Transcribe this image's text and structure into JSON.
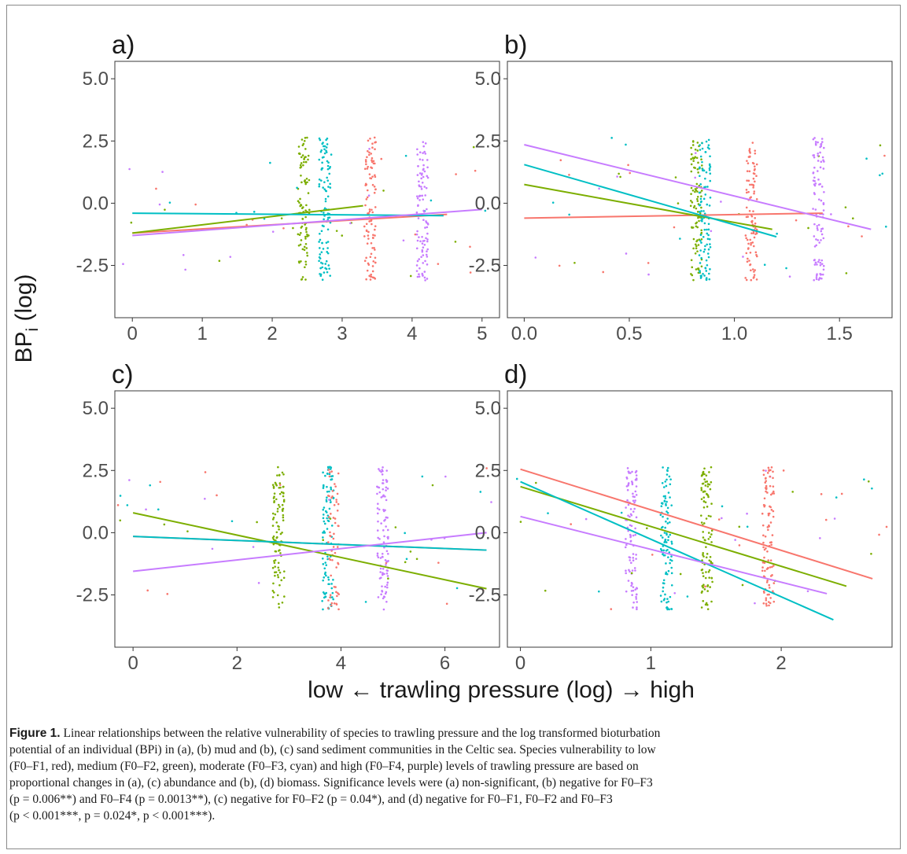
{
  "figure": {
    "ylabel_main": "BP",
    "ylabel_sub": "i",
    "ylabel_tail": " (log)",
    "xlabel": "low ← trawling pressure (log) → high"
  },
  "caption": {
    "label": "Figure 1.",
    "lines": [
      " Linear relationships between the relative vulnerability of species to trawling pressure and the log transformed bioturbation",
      "potential of an individual (BPi) in (a), (b) mud and (b), (c) sand sediment communities in the Celtic sea. Species vulnerability to low",
      "(F0–F1, red), medium (F0–F2, green), moderate (F0–F3, cyan) and high (F0–F4, purple) levels of trawling pressure are based on",
      "proportional changes in (a), (c) abundance and (b), (d) biomass. Significance levels were (a) non-significant, (b) negative for F0–F3",
      "(p = 0.006**) and F0–F4 (p = 0.0013**), (c) negative for F0–F2 (p = 0.04*), and (d) negative for F0–F1, F0–F2 and F0–F3",
      "(p < 0.001***, p = 0.024*, p < 0.001***)."
    ]
  },
  "colors": {
    "F0-F1": "#F8766D",
    "F0-F2": "#7CAE00",
    "F0-F3": "#00BFC4",
    "F0-F4": "#C77CFF"
  },
  "chart_data": [
    {
      "type": "scatter",
      "panel": "a)",
      "xticks": [
        0,
        1,
        2,
        3,
        4,
        5
      ],
      "xticklabels": [
        "0",
        "1",
        "2",
        "3",
        "4",
        "5"
      ],
      "yticks": [
        5.0,
        2.5,
        0.0,
        -2.5
      ],
      "yticklabels": [
        "5.0",
        "2.5",
        "0.0",
        "-2.5"
      ],
      "xlim": [
        -0.25,
        5.25
      ],
      "ylim": [
        -4.6,
        5.7
      ],
      "clusters": [
        {
          "group": "F0-F2",
          "x": 2.45,
          "n": 95
        },
        {
          "group": "F0-F3",
          "x": 2.75,
          "n": 100
        },
        {
          "group": "F0-F1",
          "x": 3.4,
          "n": 100
        },
        {
          "group": "F0-F4",
          "x": 4.15,
          "n": 100
        }
      ],
      "lines": [
        {
          "group": "F0-F1",
          "x": [
            0.0,
            4.5
          ],
          "y": [
            -1.2,
            -0.45
          ]
        },
        {
          "group": "F0-F2",
          "x": [
            0.0,
            3.3
          ],
          "y": [
            -1.2,
            -0.1
          ]
        },
        {
          "group": "F0-F3",
          "x": [
            0.0,
            4.45
          ],
          "y": [
            -0.4,
            -0.5
          ]
        },
        {
          "group": "F0-F4",
          "x": [
            0.0,
            5.0
          ],
          "y": [
            -1.3,
            -0.25
          ]
        }
      ]
    },
    {
      "type": "scatter",
      "panel": "b)",
      "xticks": [
        0.0,
        0.5,
        1.0,
        1.5
      ],
      "xticklabels": [
        "0.0",
        "0.5",
        "1.0",
        "1.5"
      ],
      "yticks": [
        5.0,
        2.5,
        0.0,
        -2.5
      ],
      "yticklabels": [
        "5.0",
        "2.5",
        "0.0",
        "-2.5"
      ],
      "xlim": [
        -0.08,
        1.75
      ],
      "ylim": [
        -4.6,
        5.7
      ],
      "clusters": [
        {
          "group": "F0-F2",
          "x": 0.82,
          "n": 95
        },
        {
          "group": "F0-F3",
          "x": 0.86,
          "n": 100
        },
        {
          "group": "F0-F1",
          "x": 1.08,
          "n": 100
        },
        {
          "group": "F0-F4",
          "x": 1.4,
          "n": 100
        }
      ],
      "lines": [
        {
          "group": "F0-F1",
          "x": [
            0.0,
            1.42
          ],
          "y": [
            -0.6,
            -0.4
          ]
        },
        {
          "group": "F0-F2",
          "x": [
            0.0,
            1.18
          ],
          "y": [
            0.75,
            -1.05
          ]
        },
        {
          "group": "F0-F3",
          "x": [
            0.0,
            1.2
          ],
          "y": [
            1.55,
            -1.35
          ]
        },
        {
          "group": "F0-F4",
          "x": [
            0.0,
            1.65
          ],
          "y": [
            2.35,
            -1.05
          ]
        }
      ]
    },
    {
      "type": "scatter",
      "panel": "c)",
      "xticks": [
        0,
        2,
        4,
        6
      ],
      "xticklabels": [
        "0",
        "2",
        "4",
        "6"
      ],
      "yticks": [
        5.0,
        2.5,
        0.0,
        -2.5
      ],
      "yticklabels": [
        "5.0",
        "2.5",
        "0.0",
        "-2.5"
      ],
      "xlim": [
        -0.35,
        7.05
      ],
      "ylim": [
        -4.6,
        5.7
      ],
      "clusters": [
        {
          "group": "F0-F2",
          "x": 2.8,
          "n": 100
        },
        {
          "group": "F0-F3",
          "x": 3.75,
          "n": 95
        },
        {
          "group": "F0-F1",
          "x": 3.85,
          "n": 60
        },
        {
          "group": "F0-F4",
          "x": 4.8,
          "n": 100
        }
      ],
      "lines": [
        {
          "group": "F0-F1",
          "x": [
            0.0,
            6.8
          ],
          "y": [
            -0.15,
            -0.7
          ]
        },
        {
          "group": "F0-F2",
          "x": [
            0.0,
            6.8
          ],
          "y": [
            0.8,
            -2.25
          ]
        },
        {
          "group": "F0-F3",
          "x": [
            0.0,
            6.8
          ],
          "y": [
            -0.15,
            -0.7
          ]
        },
        {
          "group": "F0-F4",
          "x": [
            0.0,
            6.8
          ],
          "y": [
            -1.55,
            0.0
          ]
        }
      ]
    },
    {
      "type": "scatter",
      "panel": "d)",
      "xticks": [
        0,
        1,
        2
      ],
      "xticklabels": [
        "0",
        "1",
        "2"
      ],
      "yticks": [
        5.0,
        2.5,
        0.0,
        -2.5
      ],
      "yticklabels": [
        "5.0",
        "2.5",
        "0.0",
        "-2.5"
      ],
      "xlim": [
        -0.1,
        2.85
      ],
      "ylim": [
        -4.6,
        5.7
      ],
      "clusters": [
        {
          "group": "F0-F4",
          "x": 0.85,
          "n": 100
        },
        {
          "group": "F0-F3",
          "x": 1.12,
          "n": 100
        },
        {
          "group": "F0-F2",
          "x": 1.43,
          "n": 100
        },
        {
          "group": "F0-F1",
          "x": 1.9,
          "n": 100
        }
      ],
      "lines": [
        {
          "group": "F0-F1",
          "x": [
            0.0,
            2.7
          ],
          "y": [
            2.55,
            -1.85
          ]
        },
        {
          "group": "F0-F2",
          "x": [
            0.0,
            2.5
          ],
          "y": [
            1.85,
            -2.15
          ]
        },
        {
          "group": "F0-F3",
          "x": [
            0.0,
            2.4
          ],
          "y": [
            2.05,
            -3.5
          ]
        },
        {
          "group": "F0-F4",
          "x": [
            0.0,
            2.35
          ],
          "y": [
            0.65,
            -2.45
          ]
        }
      ]
    }
  ]
}
